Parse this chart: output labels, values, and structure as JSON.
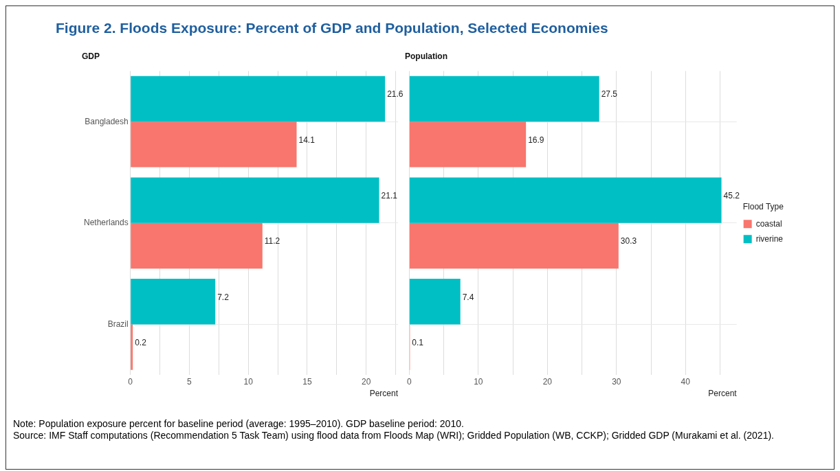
{
  "chart_data": [
    {
      "type": "bar",
      "orientation": "horizontal",
      "title": "Figure 2. Floods Exposure: Percent of GDP and Population, Selected Economies",
      "subtitle": "GDP",
      "xlabel": "Percent",
      "categories": [
        "Bangladesh",
        "Netherlands",
        "Brazil"
      ],
      "series": [
        {
          "color": "#f8766d",
          "values": [
            14.1,
            11.2,
            0.2
          ]
        },
        {
          "color": "#00bfc4",
          "values": [
            21.6,
            21.1,
            7.2
          ]
        }
      ],
      "xlim": [
        0,
        22.7
      ],
      "xticks": [
        0,
        {
          "value": 2.5,
          "label": null
        },
        5,
        {
          "value": 7.5,
          "label": null
        },
        10,
        {
          "value": 12.5,
          "label": null
        },
        15,
        {
          "value": 17.5,
          "label": null
        },
        20,
        {
          "value": 22.5,
          "label": null
        }
      ],
      "grid": true,
      "legend": false,
      "data_labels": true
    },
    {
      "type": "bar",
      "orientation": "horizontal",
      "subtitle": "Population",
      "xlabel": "Percent",
      "legend_title": "Flood Type",
      "categories": [
        null,
        null,
        null
      ],
      "series": [
        {
          "name": "coastal",
          "color": "#f8766d",
          "values": [
            16.9,
            30.3,
            0.1
          ]
        },
        {
          "name": "riverine",
          "color": "#00bfc4",
          "values": [
            27.5,
            45.2,
            7.4
          ]
        }
      ],
      "xlim": [
        0,
        47.4
      ],
      "xticks": [
        0,
        {
          "value": 5,
          "label": null
        },
        10,
        {
          "value": 15,
          "label": null
        },
        20,
        {
          "value": 25,
          "label": null
        },
        30,
        {
          "value": 35,
          "label": null
        },
        40,
        {
          "value": 45,
          "label": null
        }
      ],
      "grid": true,
      "legend": "right",
      "tick_labels": "x",
      "data_labels": true,
      "annotations": [
        "Note: Population exposure percent for baseline period (average: 1995–2010). GDP baseline period: 2010.",
        "Source: IMF Staff computations (Recommendation 5 Task Team) using flood data from Floods Map (WRI); Gridded Population (WB, CCKP); Gridded GDP (Murakami et al. (2021)."
      ]
    }
  ]
}
